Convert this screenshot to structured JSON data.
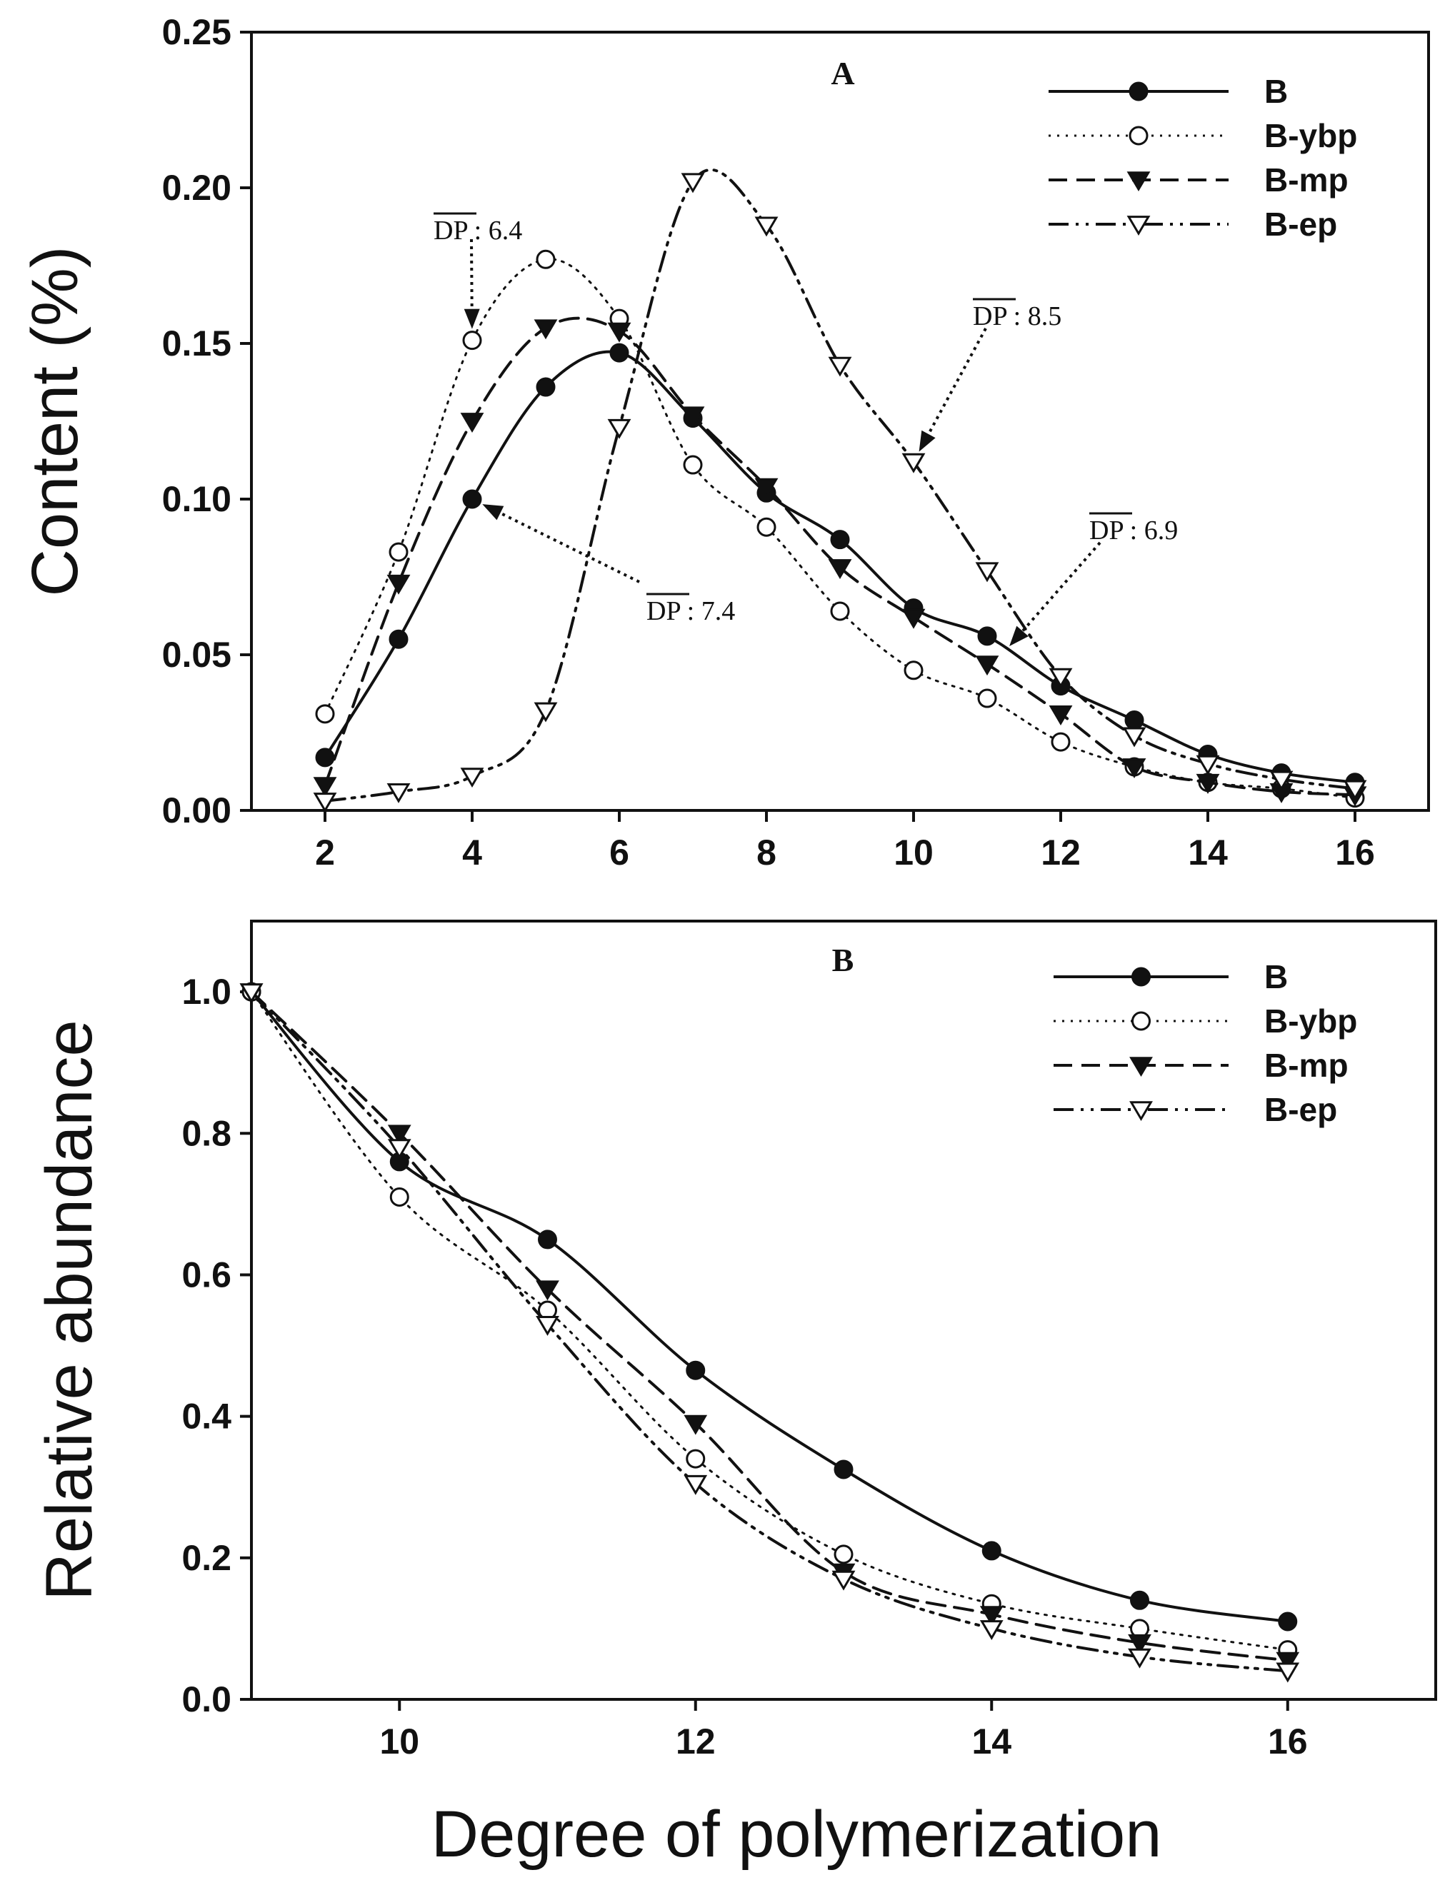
{
  "x_axis_title": "Degree of polymerization",
  "colors": {
    "ink": "#111111",
    "background": "#ffffff"
  },
  "chart_data": [
    {
      "type": "line",
      "panel": "A",
      "ylabel": "Content (%)",
      "xlabel": "",
      "xlim": [
        1,
        17
      ],
      "ylim": [
        0,
        0.25
      ],
      "xticks": [
        2,
        4,
        6,
        8,
        10,
        12,
        14,
        16
      ],
      "yticks": [
        0.0,
        0.05,
        0.1,
        0.15,
        0.2,
        0.25
      ],
      "ytick_labels": [
        "0.00",
        "0.05",
        "0.10",
        "0.15",
        "0.20",
        "0.25"
      ],
      "legend_position": "top-right",
      "x": [
        2,
        3,
        4,
        5,
        6,
        7,
        8,
        9,
        10,
        11,
        12,
        13,
        14,
        15,
        16
      ],
      "series": [
        {
          "name": "B",
          "line_style": "solid",
          "marker": "filled-circle",
          "values": [
            0.017,
            0.055,
            0.1,
            0.136,
            0.147,
            0.126,
            0.102,
            0.087,
            0.065,
            0.056,
            0.04,
            0.029,
            0.018,
            0.012,
            0.009
          ]
        },
        {
          "name": "B-ybp",
          "line_style": "dotted",
          "marker": "open-circle",
          "values": [
            0.031,
            0.083,
            0.151,
            0.177,
            0.158,
            0.111,
            0.091,
            0.064,
            0.045,
            0.036,
            0.022,
            0.014,
            0.009,
            0.007,
            0.004
          ]
        },
        {
          "name": "B-mp",
          "line_style": "dashed",
          "marker": "filled-triangle-down",
          "values": [
            0.008,
            0.073,
            0.125,
            0.155,
            0.154,
            0.127,
            0.104,
            0.078,
            0.062,
            0.047,
            0.031,
            0.014,
            0.009,
            0.006,
            0.005
          ]
        },
        {
          "name": "B-ep",
          "line_style": "dash-dot-dot",
          "marker": "open-triangle-down",
          "values": [
            0.003,
            0.006,
            0.011,
            0.032,
            0.123,
            0.202,
            0.188,
            0.143,
            0.112,
            0.077,
            0.043,
            0.024,
            0.015,
            0.01,
            0.007
          ]
        }
      ],
      "annotations": [
        {
          "label": "DP",
          "value": ": 6.4",
          "target_x": 4,
          "target_y": 0.151
        },
        {
          "label": "DP",
          "value": ": 8.5",
          "target_x": 10,
          "target_y": 0.112
        },
        {
          "label": "DP",
          "value": ": 7.4",
          "target_x": 4,
          "target_y": 0.1
        },
        {
          "label": "DP",
          "value": ": 6.9",
          "target_x": 11.2,
          "target_y": 0.05
        }
      ]
    },
    {
      "type": "line",
      "panel": "B",
      "ylabel": "Relative abundance",
      "xlabel": "Degree of polymerization",
      "xlim": [
        9,
        17
      ],
      "ylim": [
        0,
        1.1
      ],
      "xticks": [
        10,
        12,
        14,
        16
      ],
      "yticks": [
        0.0,
        0.2,
        0.4,
        0.6,
        0.8,
        1.0
      ],
      "ytick_labels": [
        "0.0",
        "0.2",
        "0.4",
        "0.6",
        "0.8",
        "1.0"
      ],
      "legend_position": "top-right",
      "x": [
        9,
        10,
        11,
        12,
        13,
        14,
        15,
        16
      ],
      "series": [
        {
          "name": "B",
          "line_style": "solid",
          "marker": "filled-circle",
          "values": [
            1.0,
            0.76,
            0.65,
            0.465,
            0.325,
            0.21,
            0.14,
            0.11
          ]
        },
        {
          "name": "B-ybp",
          "line_style": "dotted",
          "marker": "open-circle",
          "values": [
            1.0,
            0.71,
            0.55,
            0.34,
            0.205,
            0.135,
            0.1,
            0.07
          ]
        },
        {
          "name": "B-mp",
          "line_style": "dashed",
          "marker": "filled-triangle-down",
          "values": [
            1.0,
            0.8,
            0.58,
            0.39,
            0.18,
            0.12,
            0.08,
            0.055
          ]
        },
        {
          "name": "B-ep",
          "line_style": "dash-dot-dot",
          "marker": "open-triangle-down",
          "values": [
            1.0,
            0.78,
            0.53,
            0.305,
            0.17,
            0.1,
            0.06,
            0.04
          ]
        }
      ]
    }
  ]
}
